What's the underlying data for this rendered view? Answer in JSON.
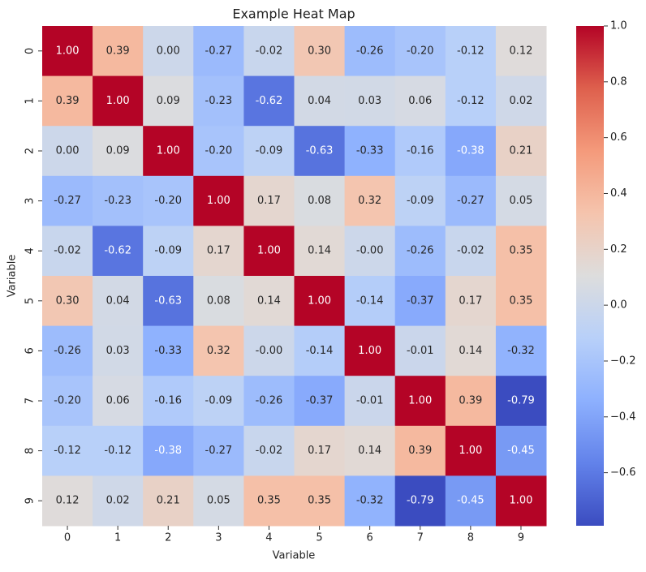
{
  "chart_data": {
    "type": "heatmap",
    "title": "Example Heat Map",
    "x_label": "Variable",
    "y_label": "Variable",
    "x_categories": [
      "0",
      "1",
      "2",
      "3",
      "4",
      "5",
      "6",
      "7",
      "8",
      "9"
    ],
    "y_categories": [
      "0",
      "1",
      "2",
      "3",
      "4",
      "5",
      "6",
      "7",
      "8",
      "9"
    ],
    "values": [
      [
        1.0,
        0.39,
        0.0,
        -0.27,
        -0.02,
        0.3,
        -0.26,
        -0.2,
        -0.12,
        0.12
      ],
      [
        0.39,
        1.0,
        0.09,
        -0.23,
        -0.62,
        0.04,
        0.03,
        0.06,
        -0.12,
        0.02
      ],
      [
        0.0,
        0.09,
        1.0,
        -0.2,
        -0.09,
        -0.63,
        -0.33,
        -0.16,
        -0.38,
        0.21
      ],
      [
        -0.27,
        -0.23,
        -0.2,
        1.0,
        0.17,
        0.08,
        0.32,
        -0.09,
        -0.27,
        0.05
      ],
      [
        -0.02,
        -0.62,
        -0.09,
        0.17,
        1.0,
        0.14,
        0,
        -0.26,
        -0.02,
        0.35
      ],
      [
        0.3,
        0.04,
        -0.63,
        0.08,
        0.14,
        1.0,
        -0.14,
        -0.37,
        0.17,
        0.35
      ],
      [
        -0.26,
        0.03,
        -0.33,
        0.32,
        0,
        -0.14,
        1.0,
        -0.01,
        0.14,
        -0.32
      ],
      [
        -0.2,
        0.06,
        -0.16,
        -0.09,
        -0.26,
        -0.37,
        -0.01,
        1.0,
        0.39,
        -0.79
      ],
      [
        -0.12,
        -0.12,
        -0.38,
        -0.27,
        -0.02,
        0.17,
        0.14,
        0.39,
        1.0,
        -0.45
      ],
      [
        0.12,
        0.02,
        0.21,
        0.05,
        0.35,
        0.35,
        -0.32,
        -0.79,
        -0.45,
        1.0
      ]
    ],
    "value_labels": [
      [
        "1.00",
        "0.39",
        "0.00",
        "-0.27",
        "-0.02",
        "0.30",
        "-0.26",
        "-0.20",
        "-0.12",
        "0.12"
      ],
      [
        "0.39",
        "1.00",
        "0.09",
        "-0.23",
        "-0.62",
        "0.04",
        "0.03",
        "0.06",
        "-0.12",
        "0.02"
      ],
      [
        "0.00",
        "0.09",
        "1.00",
        "-0.20",
        "-0.09",
        "-0.63",
        "-0.33",
        "-0.16",
        "-0.38",
        "0.21"
      ],
      [
        "-0.27",
        "-0.23",
        "-0.20",
        "1.00",
        "0.17",
        "0.08",
        "0.32",
        "-0.09",
        "-0.27",
        "0.05"
      ],
      [
        "-0.02",
        "-0.62",
        "-0.09",
        "0.17",
        "1.00",
        "0.14",
        "-0.00",
        "-0.26",
        "-0.02",
        "0.35"
      ],
      [
        "0.30",
        "0.04",
        "-0.63",
        "0.08",
        "0.14",
        "1.00",
        "-0.14",
        "-0.37",
        "0.17",
        "0.35"
      ],
      [
        "-0.26",
        "0.03",
        "-0.33",
        "0.32",
        "-0.00",
        "-0.14",
        "1.00",
        "-0.01",
        "0.14",
        "-0.32"
      ],
      [
        "-0.20",
        "0.06",
        "-0.16",
        "-0.09",
        "-0.26",
        "-0.37",
        "-0.01",
        "1.00",
        "0.39",
        "-0.79"
      ],
      [
        "-0.12",
        "-0.12",
        "-0.38",
        "-0.27",
        "-0.02",
        "0.17",
        "0.14",
        "0.39",
        "1.00",
        "-0.45"
      ],
      [
        "0.12",
        "0.02",
        "0.21",
        "0.05",
        "0.35",
        "0.35",
        "-0.32",
        "-0.79",
        "-0.45",
        "1.00"
      ]
    ],
    "colormap": "coolwarm",
    "clim": [
      -0.79,
      1.0
    ],
    "cticks": [
      {
        "value": -0.6,
        "label": "−0.6"
      },
      {
        "value": -0.4,
        "label": "−0.4"
      },
      {
        "value": -0.2,
        "label": "−0.2"
      },
      {
        "value": 0,
        "label": "0.0"
      },
      0.2,
      0.4,
      0.6,
      0.8,
      {
        "value": 1,
        "label": "1.0"
      }
    ]
  }
}
